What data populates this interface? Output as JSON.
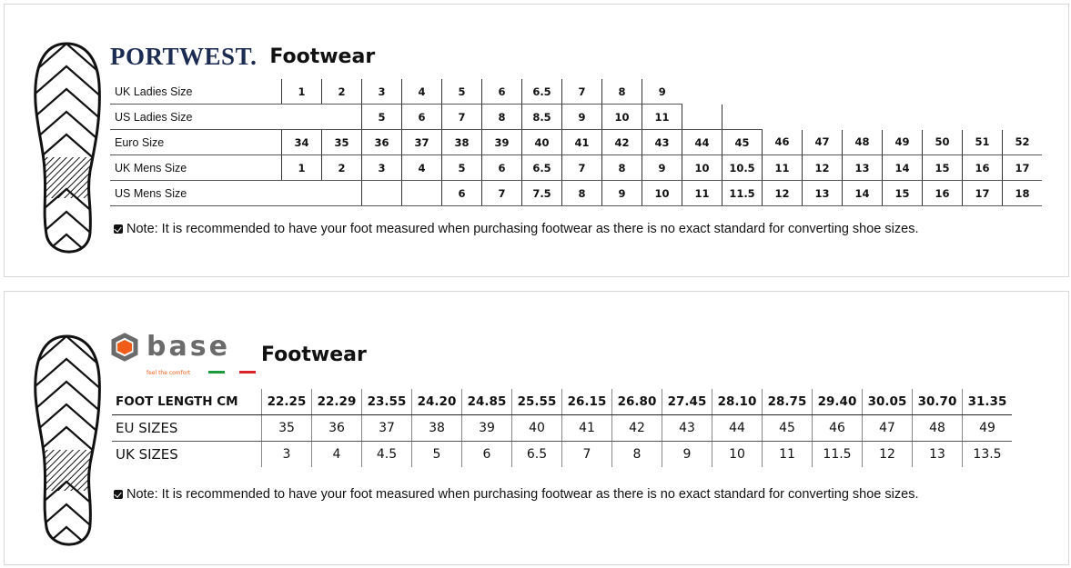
{
  "portwest": {
    "logo": "PORTWEST.",
    "title": "Footwear",
    "rows": [
      {
        "label": "UK Ladies Size",
        "values": [
          "1",
          "2",
          "3",
          "4",
          "5",
          "6",
          "6.5",
          "7",
          "8",
          "9",
          null,
          null,
          null,
          null,
          null,
          null,
          null,
          null,
          null
        ]
      },
      {
        "label": "US Ladies Size",
        "values": [
          "",
          "",
          "5",
          "6",
          "7",
          "8",
          "8.5",
          "9",
          "10",
          "11",
          "",
          "",
          null,
          null,
          null,
          null,
          null,
          null,
          null
        ]
      },
      {
        "label": "Euro Size",
        "values": [
          "34",
          "35",
          "36",
          "37",
          "38",
          "39",
          "40",
          "41",
          "42",
          "43",
          "44",
          "45",
          "46",
          "47",
          "48",
          "49",
          "50",
          "51",
          "52"
        ]
      },
      {
        "label": "UK Mens Size",
        "values": [
          "1",
          "2",
          "3",
          "4",
          "5",
          "6",
          "6.5",
          "7",
          "8",
          "9",
          "10",
          "10.5",
          "11",
          "12",
          "13",
          "14",
          "15",
          "16",
          "17"
        ]
      },
      {
        "label": "US Mens Size",
        "values": [
          "",
          "",
          "",
          "",
          "6",
          "7",
          "7.5",
          "8",
          "9",
          "10",
          "11",
          "11.5",
          "12",
          "13",
          "14",
          "15",
          "16",
          "17",
          "18"
        ]
      }
    ],
    "note": "Note: It is recommended to have your foot measured when purchasing footwear as there is no exact standard for converting shoe sizes."
  },
  "base": {
    "logo": "base",
    "tagline": "feel the comfort",
    "title": "Footwear",
    "rows": [
      {
        "label": "FOOT LENGTH CM",
        "values": [
          "22.25",
          "22.29",
          "23.55",
          "24.20",
          "24.85",
          "25.55",
          "26.15",
          "26.80",
          "27.45",
          "28.10",
          "28.75",
          "29.40",
          "30.05",
          "30.70",
          "31.35"
        ]
      },
      {
        "label": "EU SIZES",
        "values": [
          "35",
          "36",
          "37",
          "38",
          "39",
          "40",
          "41",
          "42",
          "43",
          "44",
          "45",
          "46",
          "47",
          "48",
          "49"
        ]
      },
      {
        "label": "UK SIZES",
        "values": [
          "3",
          "4",
          "4.5",
          "5",
          "6",
          "6.5",
          "7",
          "8",
          "9",
          "10",
          "11",
          "11.5",
          "12",
          "13",
          "13.5"
        ]
      }
    ],
    "note": "Note: It is recommended to have your foot measured when purchasing footwear as there is no exact standard for converting shoe sizes.",
    "colors": {
      "orange": "#f25c19",
      "grey": "#6b6b6b",
      "green": "#1a9a3a",
      "red": "#d8232a"
    }
  }
}
